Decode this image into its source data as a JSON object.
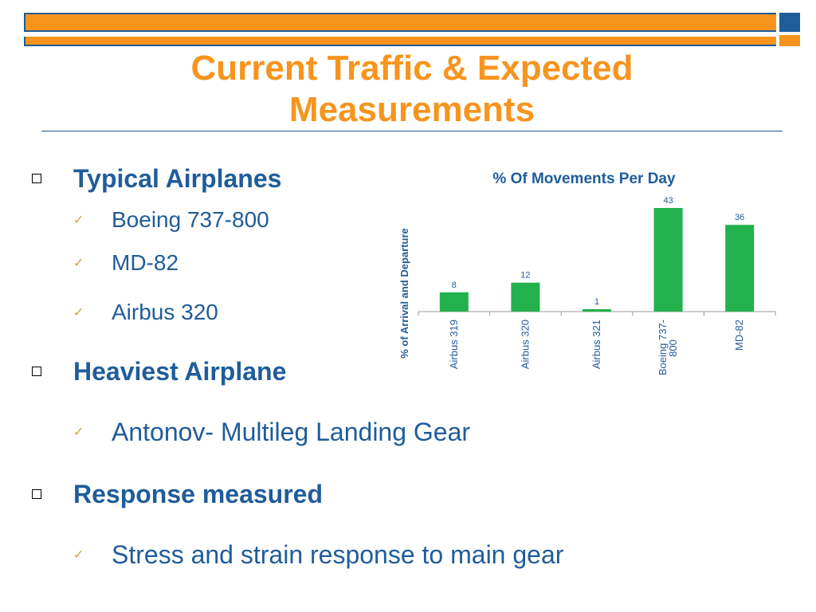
{
  "slide": {
    "title_line1": "Current Traffic & Expected",
    "title_line2": "Measurements",
    "colors": {
      "accent_orange": "#F7941D",
      "primary_blue": "#1F5C9A",
      "bar_green": "#22B14C",
      "check_gold": "#C8A34A"
    }
  },
  "bullets": {
    "typical_heading": "Typical Airplanes",
    "typical_items": [
      "Boeing 737-800",
      "MD-82",
      "Airbus 320"
    ],
    "heaviest_heading": "Heaviest Airplane",
    "heaviest_item": "Antonov- Multileg Landing Gear",
    "response_heading": "Response measured",
    "response_item": "Stress and strain response to main gear",
    "square_icon": "square-bullet-icon",
    "check_icon": "checkmark-icon"
  },
  "chart_data": {
    "type": "bar",
    "title": "% Of Movements Per Day",
    "ylabel": "% of Arrival and Departure",
    "xlabel": "",
    "categories": [
      "Airbus 319",
      "Airbus 320",
      "Airbus 321",
      "Boeing 737-800",
      "MD-82"
    ],
    "category_lines": [
      [
        "Airbus 319"
      ],
      [
        "Airbus 320"
      ],
      [
        "Airbus 321"
      ],
      [
        "Boeing 737-",
        "800"
      ],
      [
        "MD-82"
      ]
    ],
    "values": [
      8,
      12,
      1,
      43,
      36
    ],
    "value_labels": [
      "8",
      "12",
      "1",
      "43",
      "36"
    ],
    "ylim": [
      0,
      43
    ],
    "grid": false,
    "legend": "none",
    "bar_color": "#22B14C"
  }
}
